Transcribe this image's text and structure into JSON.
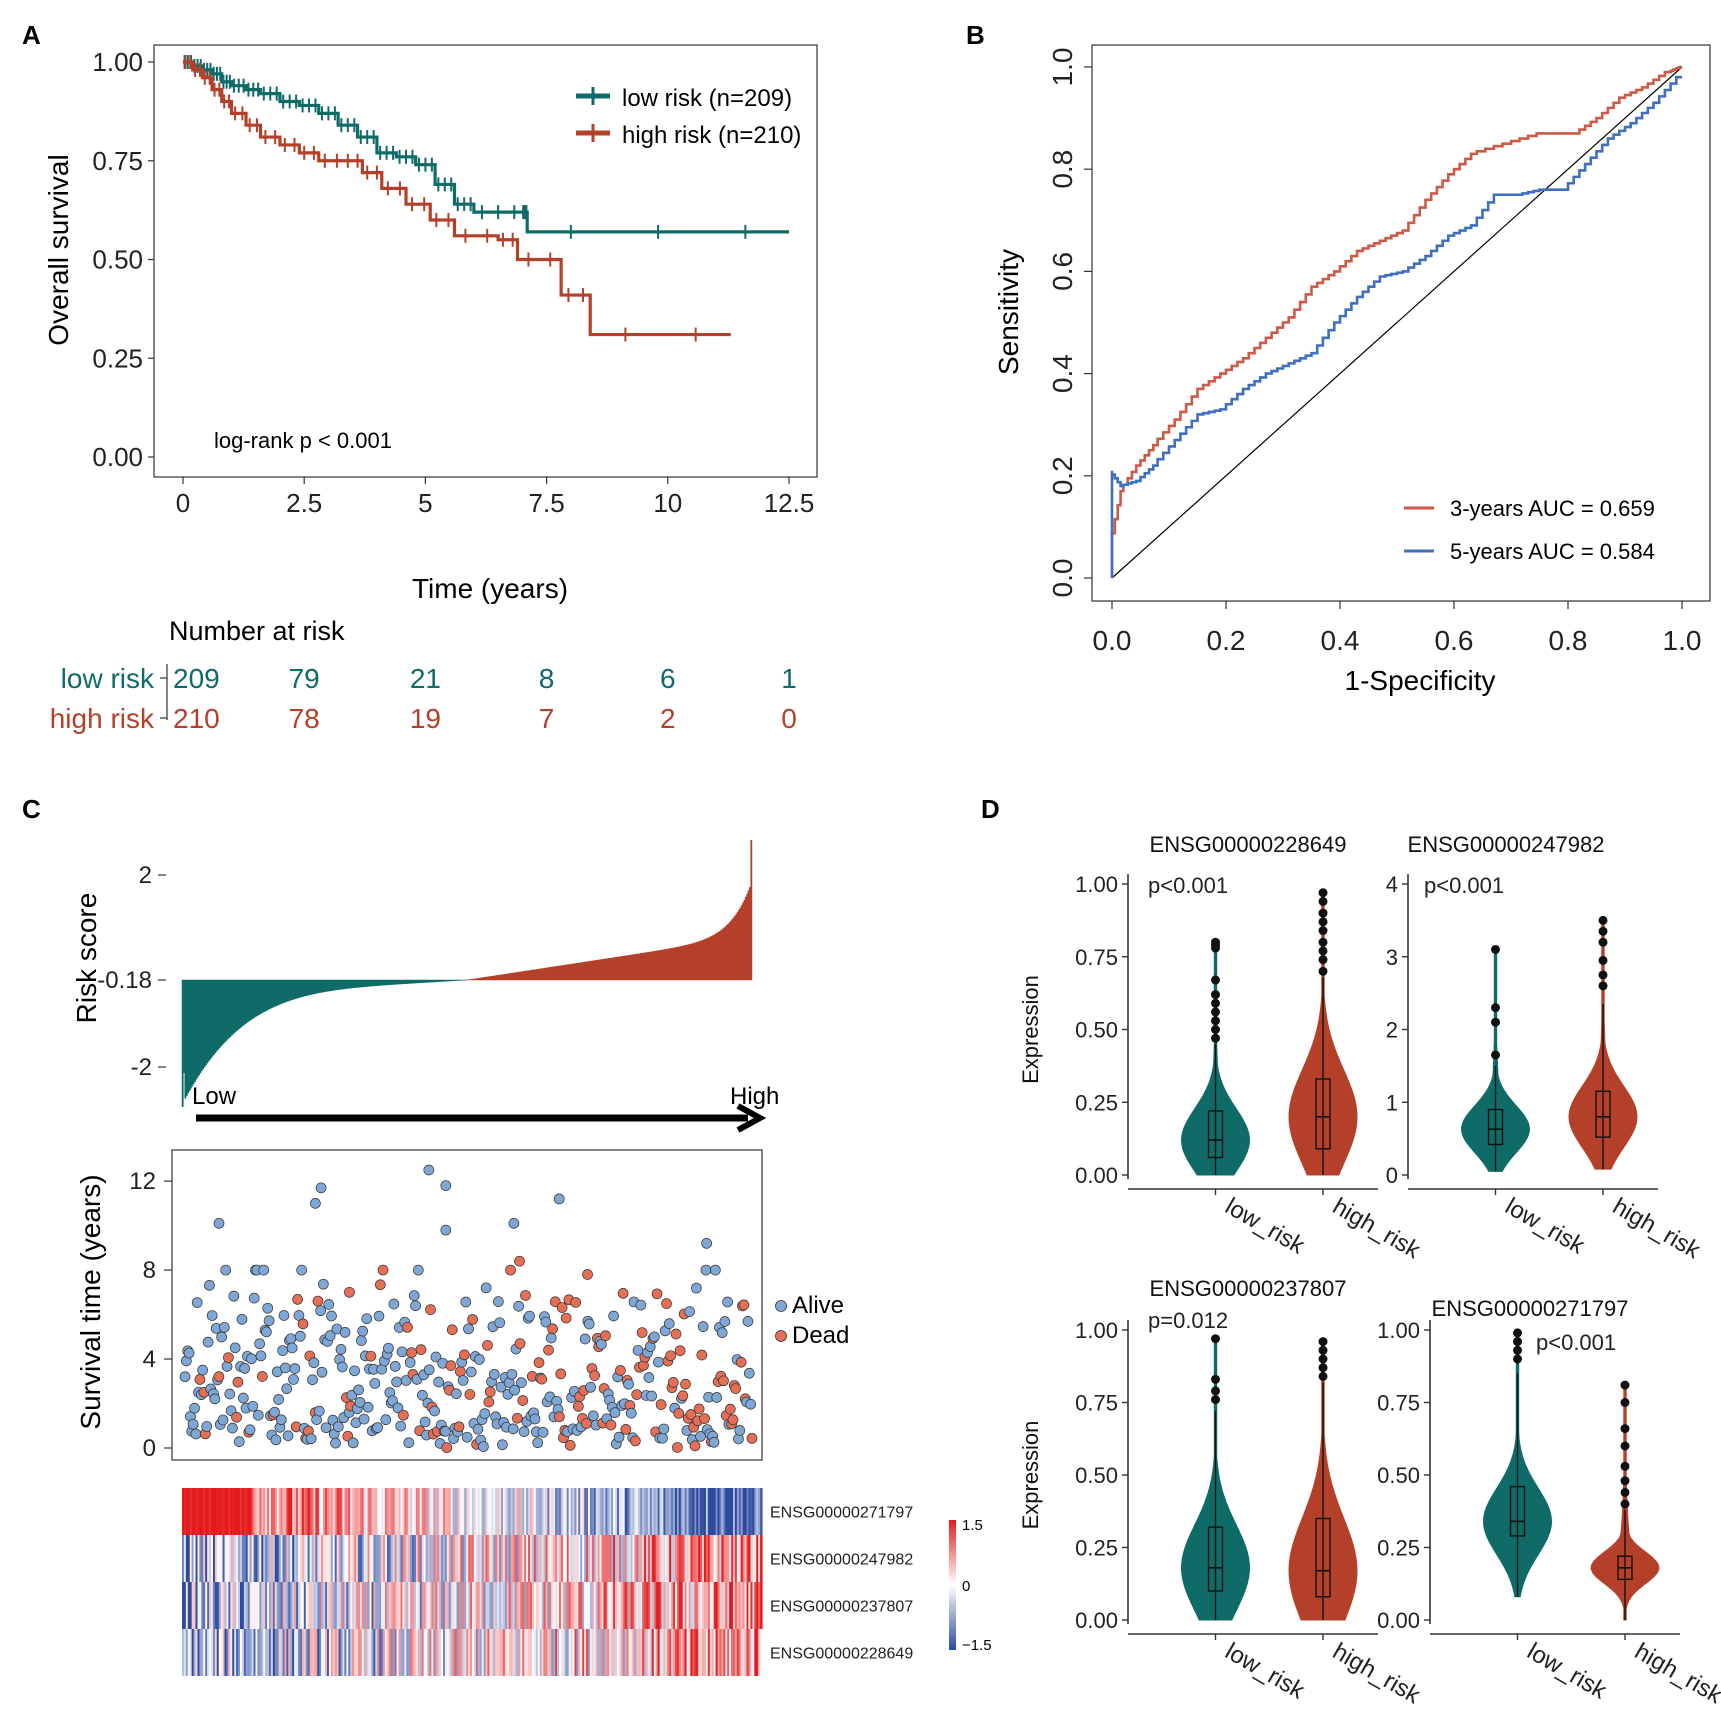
{
  "colors": {
    "low": "#0f6b68",
    "high": "#b5402a",
    "roc3": "#cd5a46",
    "roc5": "#3f6fbe",
    "alive": "#7fa7d6",
    "dead": "#e46f56",
    "heat_pos": "#e41a1c",
    "heat_neg": "#2c4aa0"
  },
  "chart_data": [
    {
      "panel": "A",
      "type": "line",
      "subtype": "kaplan-meier",
      "xlabel": "Time (years)",
      "ylabel": "Overall survival",
      "xticks": [
        "0",
        "2.5",
        "5",
        "7.5",
        "10",
        "12.5"
      ],
      "yticks": [
        "0.00",
        "0.25",
        "0.50",
        "0.75",
        "1.00"
      ],
      "xlim": [
        0,
        12.5
      ],
      "ylim": [
        0,
        1
      ],
      "annotation": "log-rank p < 0.001",
      "legend": [
        "low risk (n=209)",
        "high risk (n=210)"
      ],
      "series": [
        {
          "name": "low risk (n=209)",
          "x": [
            0,
            0.2,
            0.4,
            0.6,
            0.8,
            1.0,
            1.3,
            1.6,
            2.0,
            2.4,
            2.8,
            3.2,
            3.6,
            4.0,
            4.4,
            4.8,
            5.2,
            5.6,
            6.0,
            7.0,
            7.1,
            12.5
          ],
          "y": [
            1.0,
            0.99,
            0.98,
            0.97,
            0.95,
            0.94,
            0.93,
            0.92,
            0.9,
            0.89,
            0.87,
            0.84,
            0.81,
            0.77,
            0.76,
            0.74,
            0.69,
            0.64,
            0.62,
            0.62,
            0.57,
            0.57
          ]
        },
        {
          "name": "high risk (n=210)",
          "x": [
            0,
            0.2,
            0.4,
            0.6,
            0.8,
            1.0,
            1.3,
            1.6,
            2.0,
            2.4,
            2.8,
            3.3,
            3.7,
            4.1,
            4.6,
            5.1,
            5.6,
            6.5,
            6.9,
            7.8,
            8.4,
            11.3
          ],
          "y": [
            1.0,
            0.98,
            0.96,
            0.93,
            0.9,
            0.87,
            0.84,
            0.81,
            0.79,
            0.77,
            0.75,
            0.75,
            0.72,
            0.68,
            0.64,
            0.6,
            0.56,
            0.55,
            0.5,
            0.41,
            0.31,
            0.31
          ]
        }
      ],
      "risk_table": {
        "title": "Number at risk",
        "rows": [
          {
            "label": "low risk",
            "values": [
              "209",
              "79",
              "21",
              "8",
              "6",
              "1"
            ]
          },
          {
            "label": "high risk",
            "values": [
              "210",
              "78",
              "19",
              "7",
              "2",
              "0"
            ]
          }
        ]
      }
    },
    {
      "panel": "B",
      "type": "line",
      "subtype": "roc",
      "xlabel": "1-Specificity",
      "ylabel": "Sensitivity",
      "xticks": [
        "0.0",
        "0.2",
        "0.4",
        "0.6",
        "0.8",
        "1.0"
      ],
      "yticks": [
        "0.0",
        "0.2",
        "0.4",
        "0.6",
        "0.8",
        "1.0"
      ],
      "xlim": [
        0,
        1
      ],
      "ylim": [
        0,
        1
      ],
      "legend": [
        "3-years AUC =  0.659",
        "5-years AUC =  0.584"
      ],
      "series": [
        {
          "name": "3-years AUC =  0.659",
          "x": [
            0,
            0.0,
            0.02,
            0.05,
            0.08,
            0.12,
            0.16,
            0.2,
            0.24,
            0.28,
            0.32,
            0.36,
            0.4,
            0.44,
            0.48,
            0.52,
            0.56,
            0.6,
            0.64,
            0.7,
            0.76,
            0.82,
            0.86,
            0.9,
            0.94,
            0.98,
            1.0
          ],
          "y": [
            0,
            0.06,
            0.17,
            0.22,
            0.26,
            0.31,
            0.37,
            0.4,
            0.43,
            0.47,
            0.51,
            0.57,
            0.6,
            0.64,
            0.66,
            0.68,
            0.74,
            0.79,
            0.83,
            0.85,
            0.87,
            0.87,
            0.9,
            0.94,
            0.96,
            0.99,
            1.0
          ]
        },
        {
          "name": "5-years AUC =  0.584",
          "x": [
            0,
            0.0,
            0.02,
            0.05,
            0.08,
            0.12,
            0.16,
            0.2,
            0.24,
            0.28,
            0.32,
            0.36,
            0.4,
            0.44,
            0.48,
            0.52,
            0.56,
            0.6,
            0.64,
            0.68,
            0.72,
            0.76,
            0.8,
            0.84,
            0.88,
            0.92,
            0.96,
            1.0
          ],
          "y": [
            0,
            0.21,
            0.18,
            0.19,
            0.22,
            0.27,
            0.32,
            0.33,
            0.37,
            0.4,
            0.42,
            0.44,
            0.5,
            0.55,
            0.59,
            0.6,
            0.63,
            0.67,
            0.69,
            0.75,
            0.75,
            0.76,
            0.76,
            0.81,
            0.86,
            0.89,
            0.93,
            0.98
          ]
        }
      ]
    },
    {
      "panel": "C",
      "type": "bar",
      "subtype": "risk-score-distribution",
      "ylabel": "Risk score",
      "yticks": [
        "2",
        "-0.18",
        "-2"
      ],
      "cutoff": -0.18,
      "ylim": [
        -2.8,
        2.4
      ],
      "n_low": 209,
      "n_high": 210,
      "arrow_labels": [
        "Low",
        "High"
      ]
    },
    {
      "panel": "C",
      "type": "scatter",
      "subtype": "survival-status",
      "ylabel": "Survival time (years)",
      "yticks": [
        "0",
        "4",
        "8",
        "12"
      ],
      "ylim": [
        -0.6,
        13.2
      ],
      "legend": [
        "Alive",
        "Dead"
      ],
      "highlight_points": [
        {
          "rank": 0.06,
          "y": 10.1,
          "status": "Alive"
        },
        {
          "rank": 0.23,
          "y": 11.0,
          "status": "Alive"
        },
        {
          "rank": 0.24,
          "y": 11.7,
          "status": "Alive"
        },
        {
          "rank": 0.43,
          "y": 12.5,
          "status": "Alive"
        },
        {
          "rank": 0.46,
          "y": 11.8,
          "status": "Alive"
        },
        {
          "rank": 0.46,
          "y": 9.8,
          "status": "Alive"
        },
        {
          "rank": 0.58,
          "y": 10.1,
          "status": "Alive"
        },
        {
          "rank": 0.66,
          "y": 11.2,
          "status": "Alive"
        },
        {
          "rank": 0.92,
          "y": 9.2,
          "status": "Alive"
        },
        {
          "rank": 0.59,
          "y": 8.4,
          "status": "Dead"
        },
        {
          "rank": 0.71,
          "y": 7.8,
          "status": "Dead"
        },
        {
          "rank": 0.29,
          "y": 7.0,
          "status": "Dead"
        }
      ]
    },
    {
      "panel": "C",
      "type": "heatmap",
      "rows": [
        "ENSG00000271797",
        "ENSG00000247982",
        "ENSG00000237807",
        "ENSG00000228649"
      ],
      "scale_ticks": [
        "1.5",
        "0",
        "−1.5"
      ],
      "trend_with_risk": [
        -1,
        1,
        1,
        1
      ]
    },
    {
      "panel": "D",
      "type": "violin",
      "xlabel_categories": [
        "low_risk",
        "high_risk"
      ],
      "ylabel": "Expression",
      "plots": [
        {
          "title": "ENSG00000228649",
          "pval": "p<0.001",
          "yticks": [
            "0.00",
            "0.25",
            "0.50",
            "0.75",
            "1.00"
          ],
          "ymax": 1.0,
          "groups": [
            {
              "name": "low_risk",
              "median": 0.12,
              "q1": 0.06,
              "q3": 0.22,
              "whisker_lo": 0.0,
              "whisker_hi": 0.45,
              "outliers": [
                0.47,
                0.5,
                0.53,
                0.56,
                0.59,
                0.62,
                0.67,
                0.78,
                0.79,
                0.8
              ]
            },
            {
              "name": "high_risk",
              "median": 0.2,
              "q1": 0.09,
              "q3": 0.33,
              "whisker_lo": 0.0,
              "whisker_hi": 0.68,
              "outliers": [
                0.7,
                0.74,
                0.77,
                0.8,
                0.84,
                0.87,
                0.9,
                0.94,
                0.97
              ]
            }
          ]
        },
        {
          "title": "ENSG00000247982",
          "pval": "p<0.001",
          "yticks": [
            "0",
            "1",
            "2",
            "3",
            "4"
          ],
          "ymax": 4,
          "groups": [
            {
              "name": "low_risk",
              "median": 0.63,
              "q1": 0.42,
              "q3": 0.9,
              "whisker_lo": 0.05,
              "whisker_hi": 1.5,
              "outliers": [
                1.65,
                2.1,
                2.3,
                3.1
              ]
            },
            {
              "name": "high_risk",
              "median": 0.8,
              "q1": 0.52,
              "q3": 1.15,
              "whisker_lo": 0.08,
              "whisker_hi": 2.35,
              "outliers": [
                2.6,
                2.75,
                2.95,
                3.2,
                3.35,
                3.5
              ]
            }
          ]
        },
        {
          "title": "ENSG00000237807",
          "pval": "p=0.012",
          "yticks": [
            "0.00",
            "0.25",
            "0.50",
            "0.75",
            "1.00"
          ],
          "ymax": 1.0,
          "groups": [
            {
              "name": "low_risk",
              "median": 0.18,
              "q1": 0.1,
              "q3": 0.32,
              "whisker_lo": 0.0,
              "whisker_hi": 0.72,
              "outliers": [
                0.76,
                0.79,
                0.83,
                0.97
              ]
            },
            {
              "name": "high_risk",
              "median": 0.17,
              "q1": 0.08,
              "q3": 0.35,
              "whisker_lo": 0.0,
              "whisker_hi": 0.82,
              "outliers": [
                0.84,
                0.87,
                0.9,
                0.93,
                0.96
              ]
            }
          ]
        },
        {
          "title": "ENSG00000271797",
          "pval": "p<0.001",
          "yticks": [
            "0.00",
            "0.25",
            "0.50",
            "0.75",
            "1.00"
          ],
          "ymax": 1.0,
          "groups": [
            {
              "name": "low_risk",
              "median": 0.34,
              "q1": 0.29,
              "q3": 0.46,
              "whisker_lo": 0.08,
              "whisker_hi": 0.85,
              "outliers": [
                0.9,
                0.93,
                0.96,
                0.99
              ]
            },
            {
              "name": "high_risk",
              "median": 0.18,
              "q1": 0.14,
              "q3": 0.22,
              "whisker_lo": 0.0,
              "whisker_hi": 0.38,
              "outliers": [
                0.4,
                0.44,
                0.48,
                0.53,
                0.6,
                0.66,
                0.75,
                0.81
              ]
            }
          ]
        }
      ]
    }
  ]
}
